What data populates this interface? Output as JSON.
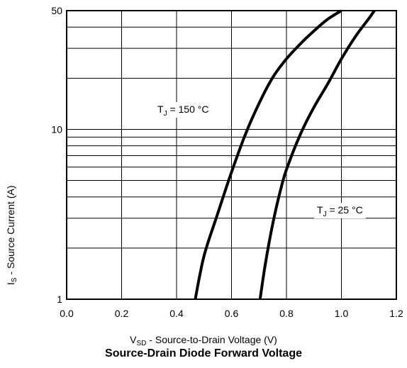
{
  "chart_data": {
    "type": "line",
    "title": "Source-Drain Diode Forward Voltage",
    "xlabel": {
      "main": "V",
      "sub": "SD",
      "rest": " - Source-to-Drain Voltage (V)"
    },
    "ylabel": {
      "main": "I",
      "sub": "S",
      "rest": " - Source Current (A)"
    },
    "xlim": [
      0.0,
      1.2
    ],
    "ylim": [
      1,
      50
    ],
    "y_scale": "log",
    "grid": true,
    "x_ticks": [
      "0.0",
      "0.2",
      "0.4",
      "0.6",
      "0.8",
      "1.0",
      "1.2"
    ],
    "y_ticks": [
      "1",
      "10",
      "50"
    ],
    "series": [
      {
        "name": "T_J = 150 °C",
        "label": {
          "main": "T",
          "sub": "J",
          "rest": " = 150 °C"
        },
        "x": [
          0.468,
          0.5,
          0.55,
          0.6,
          0.65,
          0.7,
          0.75,
          0.8,
          0.85,
          0.9,
          0.95,
          1.0
        ],
        "y": [
          1.0,
          1.8,
          3.2,
          5.6,
          9.3,
          14.2,
          20.2,
          26.0,
          31.8,
          38.0,
          44.5,
          50.0
        ]
      },
      {
        "name": "T_J = 25 °C",
        "label": {
          "main": "T",
          "sub": "J",
          "rest": " = 25 °C"
        },
        "x": [
          0.704,
          0.72,
          0.74,
          0.76,
          0.78,
          0.8,
          0.85,
          0.9,
          0.95,
          1.0,
          1.05,
          1.1,
          1.12
        ],
        "y": [
          1.0,
          1.5,
          2.3,
          3.3,
          4.5,
          5.8,
          9.3,
          13.5,
          18.5,
          26.0,
          35.0,
          45.0,
          50.0
        ]
      }
    ]
  }
}
